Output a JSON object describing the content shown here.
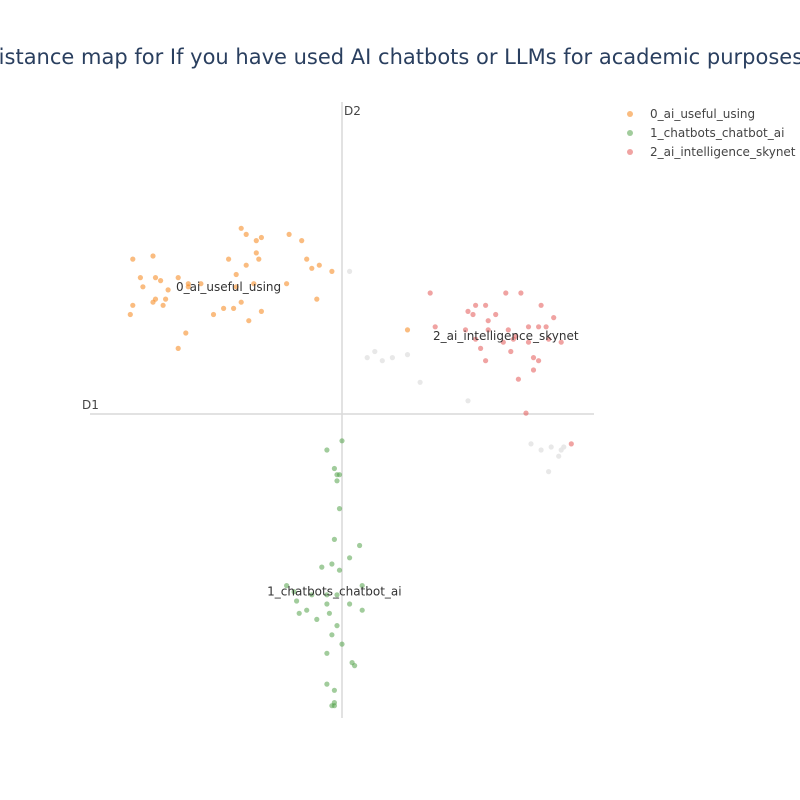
{
  "chart_data": {
    "type": "scatter",
    "title": "Intertopic distance map for If you have used AI chatbots or LLMs for academic purposes before this",
    "xlabel": "D1",
    "ylabel": "D2",
    "xlim": [
      -10,
      10
    ],
    "ylim": [
      -10,
      10
    ],
    "grid": false,
    "legend_position": "top-right",
    "series": [
      {
        "name": "0_ai_useful_using",
        "color": "#f58518",
        "cluster_label": "0_ai_useful_using",
        "centroid": [
          -4.5,
          4.0
        ],
        "points": [
          [
            -8.3,
            4.9
          ],
          [
            -7.5,
            5.0
          ],
          [
            -7.9,
            4.0
          ],
          [
            -7.4,
            3.6
          ],
          [
            -7.0,
            3.6
          ],
          [
            -8.4,
            3.1
          ],
          [
            -8.0,
            4.3
          ],
          [
            -7.4,
            4.3
          ],
          [
            -7.2,
            4.2
          ],
          [
            -6.9,
            3.9
          ],
          [
            -6.1,
            4.1
          ],
          [
            -6.5,
            2.0
          ],
          [
            -6.2,
            2.5
          ],
          [
            -6.1,
            4.0
          ],
          [
            -5.6,
            4.1
          ],
          [
            -4.5,
            4.9
          ],
          [
            -4.2,
            4.4
          ],
          [
            -3.5,
            4.1
          ],
          [
            -4.2,
            4.0
          ],
          [
            -5.1,
            3.1
          ],
          [
            -4.7,
            3.3
          ],
          [
            -4.3,
            3.3
          ],
          [
            -4.0,
            3.5
          ],
          [
            -3.7,
            2.9
          ],
          [
            -3.2,
            3.2
          ],
          [
            -4.0,
            5.9
          ],
          [
            -3.8,
            5.7
          ],
          [
            -3.4,
            5.5
          ],
          [
            -3.2,
            5.6
          ],
          [
            -3.4,
            5.1
          ],
          [
            -3.3,
            4.9
          ],
          [
            -2.1,
            5.7
          ],
          [
            -1.6,
            5.5
          ],
          [
            -1.4,
            4.9
          ],
          [
            -1.2,
            4.6
          ],
          [
            -0.9,
            4.7
          ],
          [
            -0.4,
            4.5
          ],
          [
            -2.2,
            4.1
          ],
          [
            -1.0,
            3.6
          ],
          [
            -8.3,
            3.4
          ],
          [
            -7.1,
            3.4
          ],
          [
            -6.5,
            4.3
          ],
          [
            -7.5,
            3.5
          ],
          [
            -3.8,
            4.7
          ],
          [
            2.6,
            2.6
          ]
        ]
      },
      {
        "name": "1_chatbots_chatbot_ai",
        "color": "#54a24b",
        "cluster_label": "1_chatbots_chatbot_ai",
        "centroid": [
          -0.3,
          -5.9
        ],
        "points": [
          [
            0.0,
            -1.0
          ],
          [
            -0.6,
            -1.3
          ],
          [
            -0.3,
            -1.9
          ],
          [
            -0.2,
            -2.1
          ],
          [
            -0.1,
            -2.1
          ],
          [
            -0.2,
            -2.3
          ],
          [
            -0.1,
            -3.2
          ],
          [
            -0.3,
            -4.2
          ],
          [
            0.7,
            -4.4
          ],
          [
            -0.4,
            -5.0
          ],
          [
            -0.1,
            -5.2
          ],
          [
            -0.8,
            -5.1
          ],
          [
            0.3,
            -4.8
          ],
          [
            -2.2,
            -5.7
          ],
          [
            -1.9,
            -5.9
          ],
          [
            -1.8,
            -6.2
          ],
          [
            -1.2,
            -6.0
          ],
          [
            -0.6,
            -6.0
          ],
          [
            -0.6,
            -6.3
          ],
          [
            -0.2,
            -6.0
          ],
          [
            0.3,
            -6.3
          ],
          [
            0.8,
            -5.7
          ],
          [
            0.8,
            -6.5
          ],
          [
            -1.4,
            -6.5
          ],
          [
            -1.7,
            -6.6
          ],
          [
            -1.0,
            -6.8
          ],
          [
            -0.5,
            -6.6
          ],
          [
            -0.2,
            -7.0
          ],
          [
            -0.4,
            -7.3
          ],
          [
            0.0,
            -7.6
          ],
          [
            -0.6,
            -7.9
          ],
          [
            0.4,
            -8.2
          ],
          [
            0.5,
            -8.3
          ],
          [
            -0.6,
            -8.9
          ],
          [
            -0.3,
            -9.1
          ],
          [
            -0.3,
            -9.5
          ],
          [
            -0.3,
            -9.6
          ],
          [
            -0.4,
            -9.6
          ]
        ]
      },
      {
        "name": "2_ai_intelligence_skynet",
        "color": "#e45756",
        "cluster_label": "2_ai_intelligence_skynet",
        "centroid": [
          6.5,
          2.4
        ],
        "points": [
          [
            3.5,
            3.8
          ],
          [
            5.3,
            3.4
          ],
          [
            5.7,
            3.4
          ],
          [
            6.1,
            3.1
          ],
          [
            7.1,
            3.8
          ],
          [
            7.9,
            3.4
          ],
          [
            8.4,
            3.0
          ],
          [
            5.0,
            3.2
          ],
          [
            5.8,
            2.9
          ],
          [
            4.9,
            2.6
          ],
          [
            3.7,
            2.7
          ],
          [
            5.3,
            2.3
          ],
          [
            5.8,
            2.6
          ],
          [
            6.6,
            2.6
          ],
          [
            6.9,
            2.4
          ],
          [
            7.4,
            2.7
          ],
          [
            7.8,
            2.7
          ],
          [
            8.1,
            2.7
          ],
          [
            8.2,
            2.3
          ],
          [
            8.7,
            2.2
          ],
          [
            6.4,
            2.2
          ],
          [
            5.5,
            2.0
          ],
          [
            6.8,
            2.3
          ],
          [
            6.7,
            1.9
          ],
          [
            7.6,
            1.7
          ],
          [
            7.8,
            1.6
          ],
          [
            7.6,
            1.3
          ],
          [
            7.0,
            1.0
          ],
          [
            5.7,
            1.6
          ],
          [
            7.3,
            -0.1
          ],
          [
            9.1,
            -1.1
          ],
          [
            6.5,
            3.8
          ],
          [
            5.2,
            3.1
          ],
          [
            7.4,
            2.2
          ]
        ]
      }
    ],
    "unassigned_points": {
      "color": "#e6e6e6",
      "points": [
        [
          0.3,
          4.5
        ],
        [
          1.0,
          1.7
        ],
        [
          1.3,
          1.9
        ],
        [
          1.6,
          1.6
        ],
        [
          2.0,
          1.7
        ],
        [
          2.6,
          1.8
        ],
        [
          3.1,
          0.9
        ],
        [
          5.0,
          0.3
        ],
        [
          7.5,
          -1.1
        ],
        [
          7.9,
          -1.3
        ],
        [
          8.3,
          -1.2
        ],
        [
          8.7,
          -1.3
        ],
        [
          8.8,
          -1.2
        ],
        [
          8.6,
          -1.5
        ],
        [
          8.2,
          -2.0
        ]
      ]
    }
  }
}
